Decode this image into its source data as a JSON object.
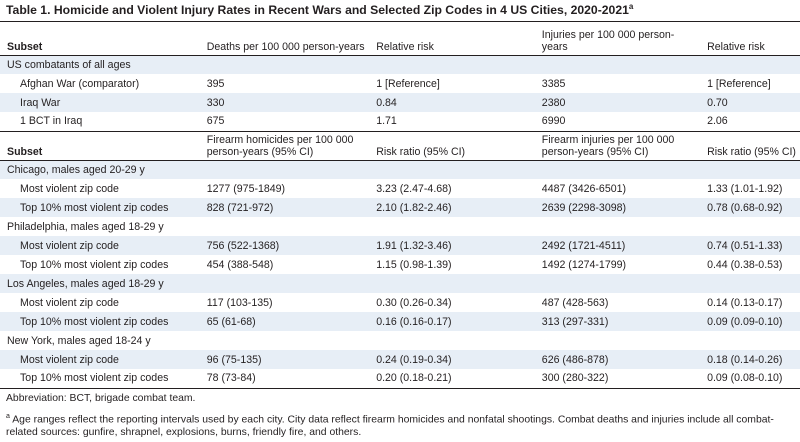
{
  "title": "Table 1. Homicide and Violent Injury Rates in Recent Wars and Selected Zip Codes in 4 US Cities, 2020-2021",
  "title_sup": "a",
  "header1": [
    "Subset",
    "Deaths per 100 000 person-years",
    "Relative risk",
    "Injuries per 100 000 person-years",
    "Relative risk"
  ],
  "group_us": "US combatants of all ages",
  "war_rows": [
    {
      "label": "Afghan War (comparator)",
      "deaths": "395",
      "rr": "1 [Reference]",
      "inj": "3385",
      "rr2": "1 [Reference]"
    },
    {
      "label": "Iraq War",
      "deaths": "330",
      "rr": "0.84",
      "inj": "2380",
      "rr2": "0.70"
    },
    {
      "label": "1 BCT in Iraq",
      "deaths": "675",
      "rr": "1.71",
      "inj": "6990",
      "rr2": "2.06"
    }
  ],
  "header2": [
    "Subset",
    "Firearm homicides per 100 000 person-years (95% CI)",
    "Risk ratio (95% CI)",
    "Firearm injuries per 100 000 person-years (95% CI)",
    "Risk ratio (95% CI)"
  ],
  "cities": [
    {
      "name": "Chicago, males aged 20-29 y",
      "rows": [
        {
          "label": "Most violent zip code",
          "hom": "1277 (975-1849)",
          "rr": "3.23 (2.47-4.68)",
          "inj": "4487 (3426-6501)",
          "rr2": "1.33 (1.01-1.92)"
        },
        {
          "label": "Top 10% most violent zip codes",
          "hom": "828 (721-972)",
          "rr": "2.10 (1.82-2.46)",
          "inj": "2639 (2298-3098)",
          "rr2": "0.78 (0.68-0.92)"
        }
      ]
    },
    {
      "name": "Philadelphia, males aged 18-29 y",
      "rows": [
        {
          "label": "Most violent zip code",
          "hom": "756 (522-1368)",
          "rr": "1.91 (1.32-3.46)",
          "inj": "2492 (1721-4511)",
          "rr2": "0.74 (0.51-1.33)"
        },
        {
          "label": "Top 10% most violent zip codes",
          "hom": "454 (388-548)",
          "rr": "1.15 (0.98-1.39)",
          "inj": "1492 (1274-1799)",
          "rr2": "0.44 (0.38-0.53)"
        }
      ]
    },
    {
      "name": "Los Angeles, males aged 18-29 y",
      "rows": [
        {
          "label": "Most violent zip code",
          "hom": "117 (103-135)",
          "rr": "0.30 (0.26-0.34)",
          "inj": "487 (428-563)",
          "rr2": "0.14 (0.13-0.17)"
        },
        {
          "label": "Top 10% most violent zip codes",
          "hom": "65 (61-68)",
          "rr": "0.16 (0.16-0.17)",
          "inj": "313 (297-331)",
          "rr2": "0.09 (0.09-0.10)"
        }
      ]
    },
    {
      "name": "New York, males aged 18-24 y",
      "rows": [
        {
          "label": "Most violent zip code",
          "hom": "96 (75-135)",
          "rr": "0.24 (0.19-0.34)",
          "inj": "626 (486-878)",
          "rr2": "0.18 (0.14-0.26)"
        },
        {
          "label": "Top 10% most violent zip codes",
          "hom": "78 (73-84)",
          "rr": "0.20 (0.18-0.21)",
          "inj": "300 (280-322)",
          "rr2": "0.09 (0.08-0.10)"
        }
      ]
    }
  ],
  "abbrev": "Abbreviation: BCT, brigade combat team.",
  "footnote_mark": "a",
  "footnote": "Age ranges reflect the reporting intervals used by each city. City data reflect firearm homicides and nonfatal shootings. Combat deaths and injuries include all combat-related sources: gunfire, shrapnel, explosions, burns, friendly fire, and others.",
  "colors": {
    "shade": "#e7eef6",
    "rule": "#231f20",
    "text": "#231f20"
  }
}
